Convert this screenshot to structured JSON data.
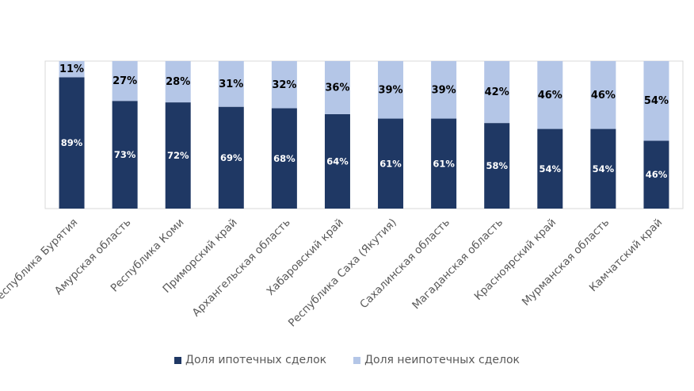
{
  "chart_data": {
    "type": "bar",
    "stacked": true,
    "percent_stacked": true,
    "categories": [
      "Республика Бурятия",
      "Амурская область",
      "Республика Коми",
      "Приморский край",
      "Архангельская область",
      "Хабаровский край",
      "Республика Саха (Якутия)",
      "Сахалинская область",
      "Магаданская область",
      "Красноярский край",
      "Мурманская область",
      "Камчатский край"
    ],
    "series": [
      {
        "name": "Доля ипотечных сделок",
        "color": "#1f3864",
        "values": [
          89,
          73,
          72,
          69,
          68,
          64,
          61,
          61,
          58,
          54,
          54,
          46
        ]
      },
      {
        "name": "Доля неипотечных сделок",
        "color": "#b4c6e7",
        "values": [
          11,
          27,
          28,
          31,
          32,
          36,
          39,
          39,
          42,
          46,
          46,
          54
        ]
      }
    ],
    "value_suffix": "%",
    "ylim": [
      0,
      100
    ],
    "legend_position": "bottom",
    "grid": false
  }
}
